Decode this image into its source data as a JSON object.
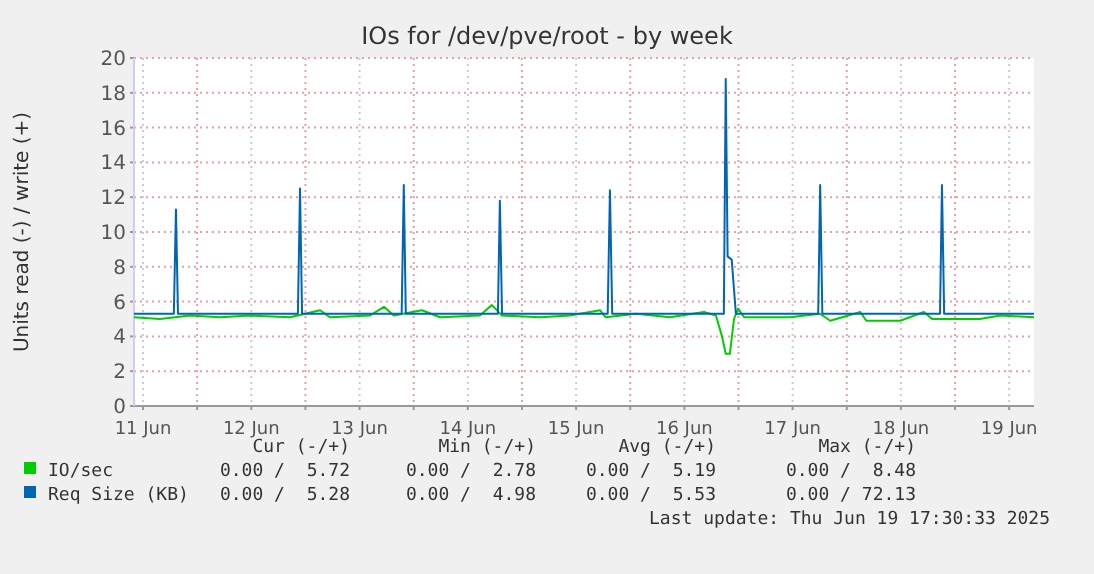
{
  "chart_data": {
    "type": "line",
    "title": "IOs for /dev/pve/root - by week",
    "ylabel": "Units read (-) / write (+)",
    "xlim": [
      "2025-06-11T10:00",
      "2025-06-19T17:30"
    ],
    "xticks": [
      {
        "value": "2025-06-11T12:00",
        "label": "11 Jun"
      },
      {
        "value": "2025-06-12T00:00",
        "label": null
      },
      {
        "value": "2025-06-12T12:00",
        "label": "12 Jun"
      },
      {
        "value": "2025-06-13T00:00",
        "label": null
      },
      {
        "value": "2025-06-13T12:00",
        "label": "13 Jun"
      },
      {
        "value": "2025-06-14T00:00",
        "label": null
      },
      {
        "value": "2025-06-14T12:00",
        "label": "14 Jun"
      },
      {
        "value": "2025-06-15T00:00",
        "label": null
      },
      {
        "value": "2025-06-15T12:00",
        "label": "15 Jun"
      },
      {
        "value": "2025-06-16T00:00",
        "label": null
      },
      {
        "value": "2025-06-16T12:00",
        "label": "16 Jun"
      },
      {
        "value": "2025-06-17T00:00",
        "label": null
      },
      {
        "value": "2025-06-17T12:00",
        "label": "17 Jun"
      },
      {
        "value": "2025-06-18T00:00",
        "label": null
      },
      {
        "value": "2025-06-18T12:00",
        "label": "18 Jun"
      },
      {
        "value": "2025-06-19T00:00",
        "label": null
      },
      {
        "value": "2025-06-19T12:00",
        "label": "19 Jun"
      }
    ],
    "ylim": [
      0,
      20
    ],
    "yticks": [
      0,
      2,
      4,
      6,
      8,
      10,
      12,
      14,
      16,
      18,
      20
    ],
    "grid": true,
    "legend": "bottom",
    "series": [
      {
        "name": "IO/sec",
        "color": "#00cc00",
        "x": [
          "2025-06-11T10:00",
          "2025-06-11T15:45",
          "2025-06-11T22:25",
          "2025-06-12T05:05",
          "2025-06-12T11:40",
          "2025-06-12T20:35",
          "2025-06-13T03:15",
          "2025-06-13T05:25",
          "2025-06-13T14:20",
          "2025-06-13T17:25",
          "2025-06-13T19:35",
          "2025-06-14T01:50",
          "2025-06-14T05:50",
          "2025-06-14T14:40",
          "2025-06-14T17:20",
          "2025-06-14T19:35",
          "2025-06-15T04:00",
          "2025-06-15T10:35",
          "2025-06-15T17:20",
          "2025-06-15T18:35",
          "2025-06-16T01:15",
          "2025-06-16T08:50",
          "2025-06-16T16:20",
          "2025-06-16T19:00",
          "2025-06-16T20:20",
          "2025-06-16T21:10",
          "2025-06-16T22:05",
          "2025-06-16T23:00",
          "2025-06-16T23:55",
          "2025-06-17T01:15",
          "2025-06-17T11:25",
          "2025-06-17T18:05",
          "2025-06-17T20:20",
          "2025-06-18T03:00",
          "2025-06-18T04:20",
          "2025-06-18T11:50",
          "2025-06-18T17:05",
          "2025-06-18T18:55",
          "2025-06-19T05:30",
          "2025-06-19T10:00",
          "2025-06-19T17:30"
        ],
        "values": [
          5.1,
          5.0,
          5.2,
          5.1,
          5.2,
          5.1,
          5.5,
          5.1,
          5.2,
          5.7,
          5.2,
          5.5,
          5.1,
          5.2,
          5.8,
          5.2,
          5.1,
          5.2,
          5.5,
          5.1,
          5.3,
          5.1,
          5.4,
          5.2,
          4.0,
          3.0,
          3.0,
          5.0,
          5.6,
          5.1,
          5.1,
          5.3,
          4.9,
          5.4,
          4.9,
          4.9,
          5.4,
          5.0,
          5.0,
          5.2,
          5.1
        ]
      },
      {
        "name": "Req Size (KB)",
        "color": "#0066b3",
        "x": [
          "2025-06-11T10:00",
          "2025-06-11T18:50",
          "2025-06-11T19:18",
          "2025-06-11T19:45",
          "2025-06-12T22:20",
          "2025-06-12T22:48",
          "2025-06-12T23:15",
          "2025-06-13T21:20",
          "2025-06-13T21:48",
          "2025-06-13T22:15",
          "2025-06-14T18:40",
          "2025-06-14T19:06",
          "2025-06-14T19:35",
          "2025-06-15T19:00",
          "2025-06-15T19:30",
          "2025-06-15T20:00",
          "2025-06-16T20:45",
          "2025-06-16T21:10",
          "2025-06-16T21:35",
          "2025-06-16T22:30",
          "2025-06-16T23:25",
          "2025-06-17T17:40",
          "2025-06-17T18:06",
          "2025-06-17T18:35",
          "2025-06-18T20:40",
          "2025-06-18T21:06",
          "2025-06-18T21:35",
          "2025-06-19T17:30"
        ],
        "values": [
          5.3,
          5.3,
          11.3,
          5.3,
          5.3,
          12.5,
          5.3,
          5.3,
          12.7,
          5.3,
          5.3,
          11.8,
          5.3,
          5.3,
          12.4,
          5.3,
          5.3,
          18.8,
          8.6,
          8.4,
          5.3,
          5.3,
          12.7,
          5.3,
          5.3,
          12.7,
          5.3,
          5.3
        ]
      }
    ],
    "annotations": [
      "Cur (-/+)",
      "Min (-/+)",
      "Avg (-/+)",
      "Max (-/+)",
      "0.00 /  5.72",
      "0.00 /  2.78",
      "0.00 /  5.19",
      "0.00 /  8.48",
      "0.00 /  5.28",
      "0.00 /  4.98",
      "0.00 /  5.53",
      "0.00 / 72.13",
      "Last update: Thu Jun 19 17:30:33 2025"
    ]
  }
}
